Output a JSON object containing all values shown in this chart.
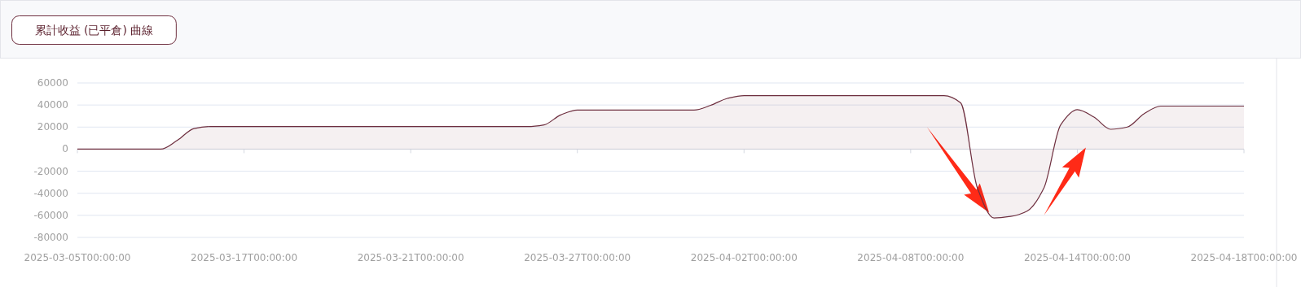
{
  "chart_data": {
    "type": "area",
    "title": "累計收益 (已平倉) 曲線",
    "categories": [
      "2025-03-05T00:00:00",
      null,
      null,
      null,
      null,
      null,
      null,
      null,
      null,
      null,
      "2025-03-17T00:00:00",
      null,
      null,
      null,
      null,
      null,
      null,
      null,
      null,
      null,
      "2025-03-21T00:00:00",
      null,
      null,
      null,
      null,
      null,
      null,
      null,
      null,
      null,
      "2025-03-27T00:00:00",
      null,
      null,
      null,
      null,
      null,
      null,
      null,
      null,
      null,
      "2025-04-02T00:00:00",
      null,
      null,
      null,
      null,
      null,
      null,
      null,
      null,
      null,
      "2025-04-08T00:00:00",
      null,
      null,
      null,
      null,
      null,
      null,
      null,
      null,
      null,
      "2025-04-14T00:00:00",
      null,
      null,
      null,
      null,
      null,
      null,
      null,
      null,
      null,
      "2025-04-18T00:00:00"
    ],
    "series": [
      {
        "color": "#6e2f3f",
        "values": [
          0,
          0,
          0,
          0,
          0,
          0,
          8000,
          18700,
          20500,
          20500,
          20500,
          20500,
          20500,
          20500,
          20500,
          20500,
          20500,
          20500,
          20500,
          20500,
          20500,
          20500,
          20500,
          20500,
          20500,
          20500,
          20500,
          20500,
          22000,
          31000,
          35400,
          35400,
          35400,
          35400,
          35400,
          35400,
          35400,
          35400,
          39700,
          46000,
          48500,
          48500,
          48500,
          48500,
          48500,
          48500,
          48500,
          48500,
          48500,
          48500,
          48500,
          48500,
          48500,
          42000,
          -35000,
          -62400,
          -61000,
          -56000,
          -35000,
          22000,
          35800,
          29000,
          18000,
          20000,
          32000,
          39000,
          39000,
          39000,
          39000,
          39000,
          39000
        ]
      }
    ],
    "ylim": [
      -80000,
      60000
    ],
    "yticks": [
      -80000,
      -60000,
      -40000,
      -20000,
      0,
      20000,
      40000,
      60000
    ],
    "grid": "y",
    "marker": "none",
    "line_style": "solid"
  }
}
